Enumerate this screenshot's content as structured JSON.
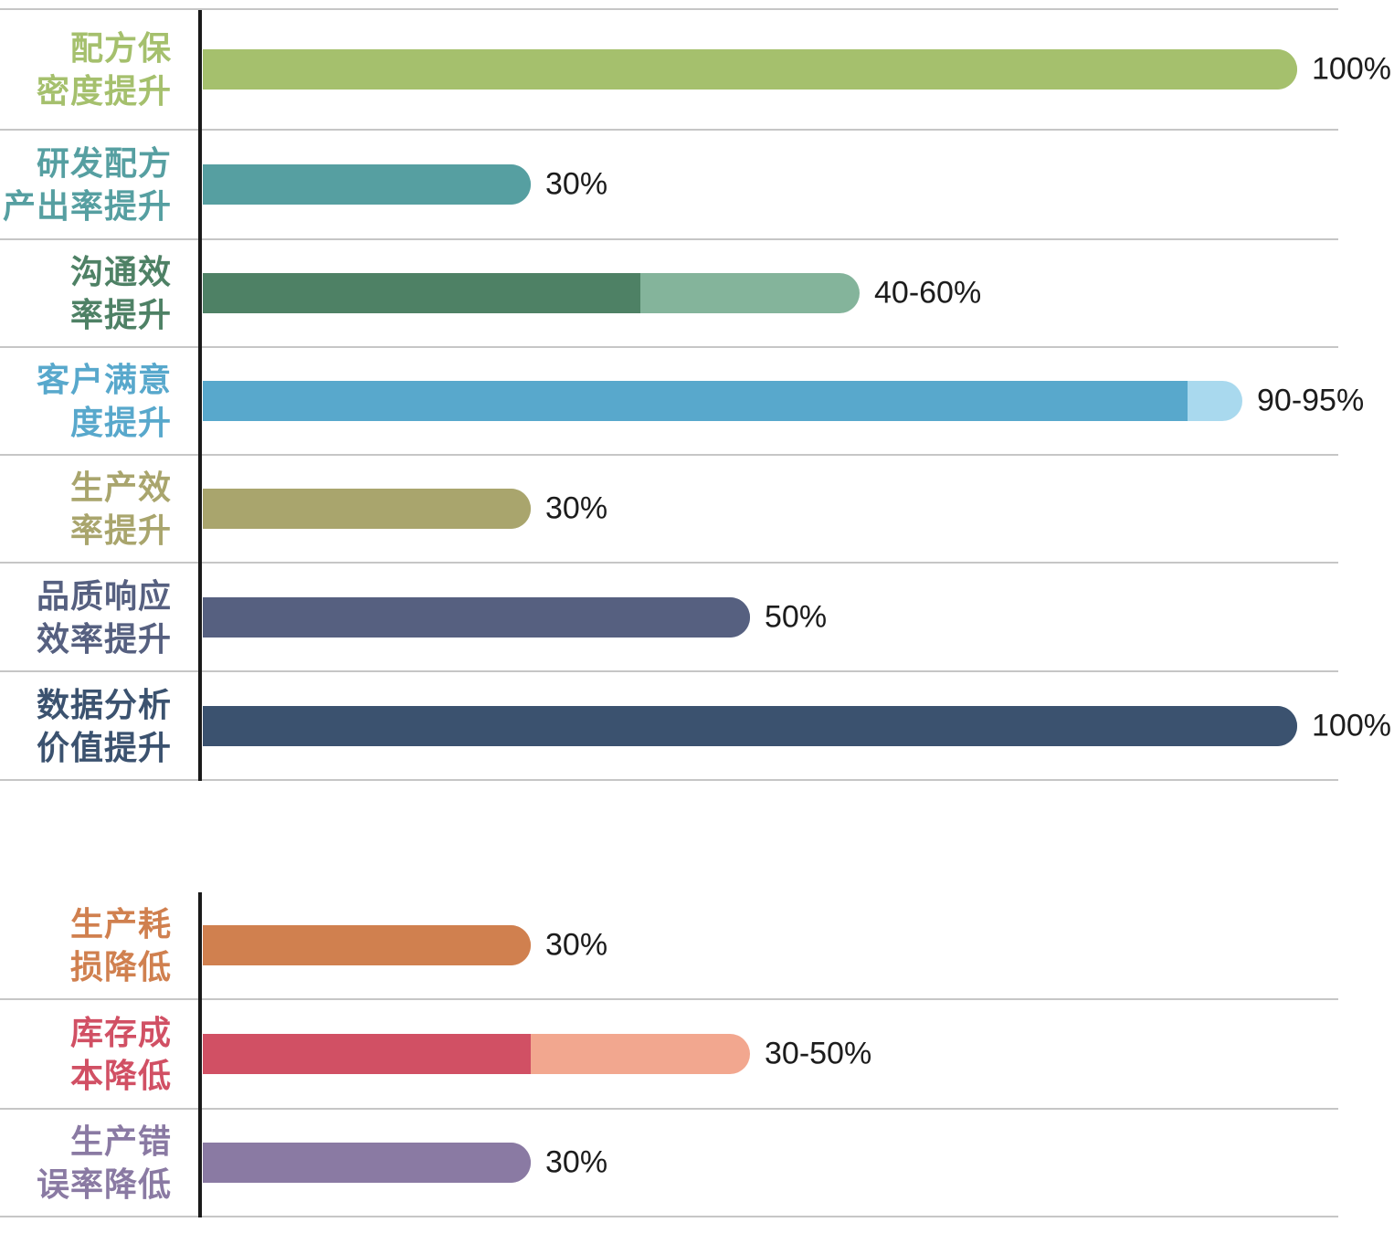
{
  "chart_data": {
    "type": "bar",
    "orientation": "horizontal",
    "unit": "percent",
    "value_axis_range": [
      0,
      100
    ],
    "gridlines": false,
    "legend": false,
    "style": {
      "axis_line_color": "#1a1a1a",
      "separator_line_color": "#c6c6c6",
      "value_text_color": "#1c1c1c",
      "background": "#ffffff"
    },
    "groups": [
      {
        "rows": [
          {
            "label": "配方保密度提升",
            "label_lines": [
              "配方保",
              "密度提升"
            ],
            "value_label": "100%",
            "value_min": 100,
            "value_max": 100,
            "color": "#a5c06d",
            "extension_color": null
          },
          {
            "label": "研发配方产出率提升",
            "label_lines": [
              "研发配方",
              "产出率提升"
            ],
            "value_label": "30%",
            "value_min": 30,
            "value_max": 30,
            "color": "#569fa1",
            "extension_color": null
          },
          {
            "label": "沟通效率提升",
            "label_lines": [
              "沟通效",
              "率提升"
            ],
            "value_label": "40-60%",
            "value_min": 40,
            "value_max": 60,
            "color": "#4e8165",
            "extension_color": "#84b49b"
          },
          {
            "label": "客户满意度提升",
            "label_lines": [
              "客户满意",
              "度提升"
            ],
            "value_label": "90-95%",
            "value_min": 90,
            "value_max": 95,
            "color": "#58a8cc",
            "extension_color": "#a9d9ee"
          },
          {
            "label": "生产效率提升",
            "label_lines": [
              "生产效",
              "率提升"
            ],
            "value_label": "30%",
            "value_min": 30,
            "value_max": 30,
            "color": "#a9a56d",
            "extension_color": null
          },
          {
            "label": "品质响应效率提升",
            "label_lines": [
              "品质响应",
              "效率提升"
            ],
            "value_label": "50%",
            "value_min": 50,
            "value_max": 50,
            "color": "#566080",
            "extension_color": null
          },
          {
            "label": "数据分析价值提升",
            "label_lines": [
              "数据分析",
              "价值提升"
            ],
            "value_label": "100%",
            "value_min": 100,
            "value_max": 100,
            "color": "#3b526f",
            "extension_color": null
          }
        ]
      },
      {
        "rows": [
          {
            "label": "生产耗损降低",
            "label_lines": [
              "生产耗",
              "损降低"
            ],
            "value_label": "30%",
            "value_min": 30,
            "value_max": 30,
            "color": "#d0804f",
            "extension_color": null
          },
          {
            "label": "库存成本降低",
            "label_lines": [
              "库存成",
              "本降低"
            ],
            "value_label": "30-50%",
            "value_min": 30,
            "value_max": 50,
            "color": "#d15064",
            "extension_color": "#f2a78f"
          },
          {
            "label": "生产错误率降低",
            "label_lines": [
              "生产错",
              "误率降低"
            ],
            "value_label": "30%",
            "value_min": 30,
            "value_max": 30,
            "color": "#8a7aa3",
            "extension_color": null
          }
        ]
      }
    ]
  }
}
